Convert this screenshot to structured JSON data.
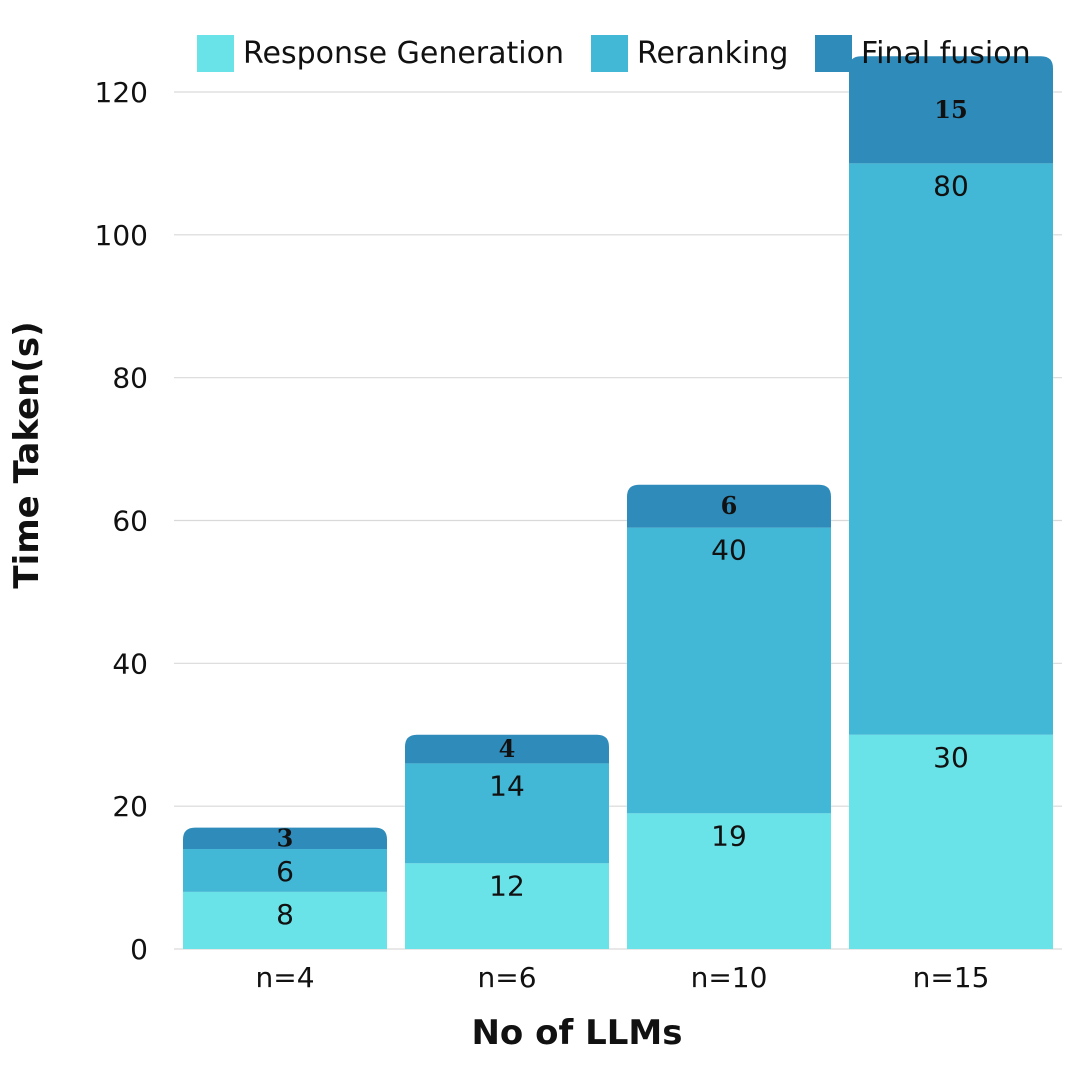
{
  "chart_data": {
    "type": "bar",
    "stacked": true,
    "categories": [
      "n=4",
      "n=6",
      "n=10",
      "n=15"
    ],
    "series": [
      {
        "name": "Response Generation",
        "values": [
          8,
          12,
          19,
          30
        ],
        "color": "#6AE3E8"
      },
      {
        "name": "Reranking",
        "values": [
          6,
          14,
          40,
          80
        ],
        "color": "#42B7D6"
      },
      {
        "name": "Final fusion",
        "values": [
          3,
          4,
          6,
          15
        ],
        "color": "#2E8BBA"
      }
    ],
    "xlabel": "No of LLMs",
    "ylabel": "Time Taken(s)",
    "ylim": [
      0,
      120
    ],
    "yticks": [
      0,
      20,
      40,
      60,
      80,
      100,
      120
    ],
    "grid": true,
    "legend_position": "top"
  }
}
